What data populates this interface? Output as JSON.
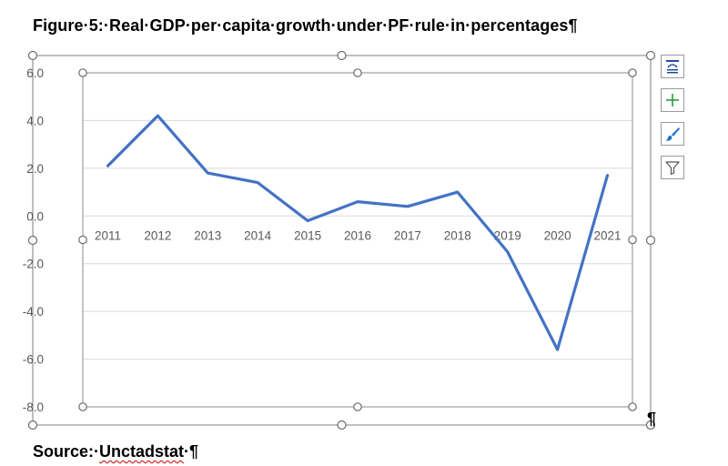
{
  "document": {
    "title_prefix": "Figure·5:·Real·GDP·per·capita·growth·under·PF·rule·in·percentages",
    "title_mark": "¶",
    "source_label": "Source:·",
    "source_name": "Unctadstat",
    "source_suffix": "·¶",
    "end_mark": "¶"
  },
  "chart_tools": [
    {
      "name": "layout-options-icon",
      "color": "#1f4e9a"
    },
    {
      "name": "chart-elements-plus-icon",
      "color": "#2e9a3e"
    },
    {
      "name": "chart-styles-brush-icon",
      "color": "#1f6fc4"
    },
    {
      "name": "chart-filters-funnel-icon",
      "color": "#555555"
    }
  ],
  "chart_data": {
    "type": "line",
    "categories": [
      "2011",
      "2012",
      "2013",
      "2014",
      "2015",
      "2016",
      "2017",
      "2018",
      "2019",
      "2020",
      "2021"
    ],
    "series": [
      {
        "values": [
          2.1,
          4.2,
          1.8,
          1.4,
          -0.2,
          0.6,
          0.4,
          1.0,
          -1.5,
          -5.6,
          1.7
        ],
        "color": "#4472c4"
      }
    ],
    "title": "",
    "xlabel": "",
    "ylabel": "",
    "ylim": [
      -8.0,
      6.0
    ],
    "yticks": [
      "6.0",
      "4.0",
      "2.0",
      "0.0",
      "-2.0",
      "-4.0",
      "-6.0",
      "-8.0"
    ],
    "ytick_values": [
      6,
      4,
      2,
      0,
      -2,
      -4,
      -6,
      -8
    ],
    "grid": true,
    "legend": "none",
    "category_axis_position": "at-zero"
  }
}
